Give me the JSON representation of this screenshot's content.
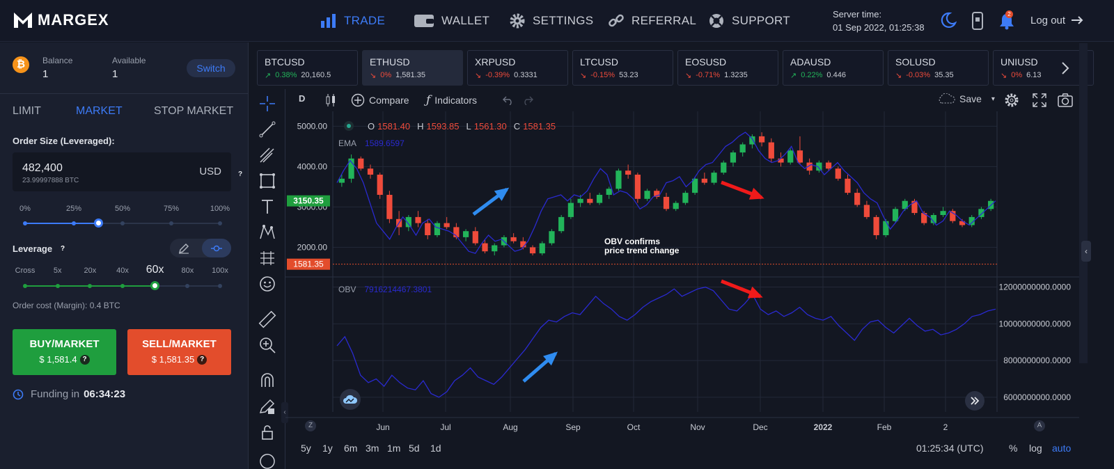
{
  "header": {
    "brand": "MARGEX",
    "nav": [
      {
        "label": "TRADE",
        "active": true
      },
      {
        "label": "WALLET",
        "active": false
      },
      {
        "label": "SETTINGS",
        "active": false
      },
      {
        "label": "REFERRAL",
        "active": false
      },
      {
        "label": "SUPPORT",
        "active": false
      }
    ],
    "server_time_label": "Server time:",
    "server_time_value": "01 Sep 2022, 01:25:38",
    "notification_count": "2",
    "logout_label": "Log out"
  },
  "account": {
    "balance_label": "Balance",
    "balance_value": "1",
    "available_label": "Available",
    "available_value": "1",
    "switch_label": "Switch"
  },
  "order": {
    "tabs": [
      "LIMIT",
      "MARKET",
      "STOP MARKET"
    ],
    "active_tab": "MARKET",
    "size_label": "Order Size (Leveraged):",
    "size_value": "482,400",
    "size_sub": "23.99997888 BTC",
    "size_unit": "USD",
    "percent_ticks": [
      "0%",
      "25%",
      "50%",
      "75%",
      "100%"
    ],
    "percent_value": 0.375,
    "leverage_label": "Leverage",
    "leverage_ticks": [
      "Cross",
      "5x",
      "20x",
      "40x",
      "60x",
      "80x",
      "100x"
    ],
    "leverage_selected": "60x",
    "order_cost": "Order cost (Margin): 0.4 BTC",
    "buy_label": "BUY/MARKET",
    "buy_price": "$ 1,581.4",
    "sell_label": "SELL/MARKET",
    "sell_price": "$ 1,581.35",
    "funding_label": "Funding in",
    "funding_time": "06:34:23"
  },
  "tickers": [
    {
      "symbol": "BTCUSD",
      "change": "0.38%",
      "price": "20,160.5",
      "dir": "up"
    },
    {
      "symbol": "ETHUSD",
      "change": "0%",
      "price": "1,581.35",
      "dir": "flat"
    },
    {
      "symbol": "XRPUSD",
      "change": "-0.39%",
      "price": "0.3331",
      "dir": "down"
    },
    {
      "symbol": "LTCUSD",
      "change": "-0.15%",
      "price": "53.23",
      "dir": "down"
    },
    {
      "symbol": "EOSUSD",
      "change": "-0.71%",
      "price": "1.3235",
      "dir": "down"
    },
    {
      "symbol": "ADAUSD",
      "change": "0.22%",
      "price": "0.446",
      "dir": "up"
    },
    {
      "symbol": "SOLUSD",
      "change": "-0.03%",
      "price": "35.35",
      "dir": "down"
    },
    {
      "symbol": "UNIUSD",
      "change": "0%",
      "price": "6.13",
      "dir": "flat"
    }
  ],
  "chart_toolbar": {
    "interval": "D",
    "compare_label": "Compare",
    "indicators_label": "Indicators",
    "save_label": "Save"
  },
  "chart_data": {
    "type": "candlestick",
    "ohlc_labels": {
      "o": "O",
      "h": "H",
      "l": "L",
      "c": "C"
    },
    "ohlc": {
      "o": "1581.40",
      "h": "1593.85",
      "l": "1561.30",
      "c": "1581.35"
    },
    "ema_label": "EMA",
    "ema_value": "1589.6597",
    "obv_label": "OBV",
    "obv_value": "7916214467.3801",
    "price_axis_ticks": [
      "5000.00",
      "4000.00",
      "3000.00",
      "2000.00"
    ],
    "price_axis_values": [
      5000,
      4000,
      3000,
      2000
    ],
    "price_ylim": [
      1300,
      5300
    ],
    "marker_high": "3150.35",
    "marker_high_value": 3150.35,
    "marker_last": "1581.35",
    "marker_last_value": 1581.35,
    "obv_axis_ticks": [
      "12000000000.0000",
      "10000000000.0000",
      "8000000000.0000",
      "6000000000.0000"
    ],
    "obv_axis_values": [
      12000000000,
      10000000000,
      8000000000,
      6000000000
    ],
    "obv_ylim": [
      5200000000,
      12400000000
    ],
    "x_ticks": [
      "Jun",
      "Jul",
      "Aug",
      "Sep",
      "Oct",
      "Nov",
      "Dec",
      "2022",
      "Feb",
      "2"
    ],
    "annotation": [
      "OBV confirms",
      "price trend change"
    ],
    "price_series": [
      3600,
      3900,
      4150,
      3950,
      3600,
      3100,
      2600,
      2400,
      2200,
      2500,
      2750,
      2550,
      2300,
      2600,
      2700,
      2500,
      2450,
      2400,
      2300,
      2100,
      1900,
      1850,
      2100,
      2300,
      2150,
      2200,
      2050,
      1900,
      1950,
      2150,
      2500,
      2900,
      3200,
      3250,
      3300,
      3150,
      3300,
      3250,
      3400,
      3700,
      3950,
      3800,
      3300,
      3400,
      3350,
      3200,
      2950,
      3050,
      3250,
      3300,
      3600,
      3650,
      3750,
      3500,
      3650,
      3900,
      4050,
      4100,
      4300,
      4500,
      4600,
      4750,
      4850,
      4700,
      4400,
      4200,
      4100,
      4150,
      4300,
      4500,
      4100,
      3950,
      4050,
      4000,
      3800,
      3950,
      4100,
      3900,
      3750,
      3600,
      3350,
      3200,
      3100,
      2750,
      2450,
      2650,
      2900,
      3050,
      3150,
      2850,
      2750,
      2550,
      2650,
      2900,
      2800,
      2650,
      2550,
      2700,
      2850,
      3000,
      3150
    ],
    "obv_series": [
      8800000000,
      9300000000,
      8400000000,
      7200000000,
      6800000000,
      7000000000,
      6600000000,
      7200000000,
      6800000000,
      6500000000,
      6400000000,
      6900000000,
      6200000000,
      6000000000,
      6300000000,
      6900000000,
      7200000000,
      7600000000,
      7100000000,
      6900000000,
      6700000000,
      7100000000,
      7600000000,
      8100000000,
      8600000000,
      9200000000,
      9800000000,
      10200000000,
      10100000000,
      10400000000,
      10600000000,
      10500000000,
      11000000000,
      11500000000,
      11100000000,
      10800000000,
      10400000000,
      10200000000,
      10500000000,
      10900000000,
      11200000000,
      11400000000,
      11600000000,
      11900000000,
      11500000000,
      11700000000,
      11900000000,
      12000000000,
      11800000000,
      11300000000,
      10800000000,
      10700000000,
      11100000000,
      11600000000,
      10800000000,
      10500000000,
      10700000000,
      10400000000,
      10600000000,
      10900000000,
      10500000000,
      10300000000,
      10200000000,
      10400000000,
      9900000000,
      9500000000,
      9100000000,
      9700000000,
      10100000000,
      10200000000,
      9800000000,
      9500000000,
      9900000000,
      10300000000,
      9900000000,
      9600000000,
      9700000000,
      9400000000,
      9500000000,
      9700000000,
      10000000000,
      10400000000,
      10500000000,
      10700000000,
      10800000000
    ],
    "candles": [
      [
        3600,
        3800,
        3500,
        3700
      ],
      [
        3700,
        4300,
        3600,
        4200
      ],
      [
        4200,
        4250,
        3900,
        3950
      ],
      [
        3950,
        4050,
        3700,
        3800
      ],
      [
        3800,
        3850,
        3200,
        3300
      ],
      [
        3300,
        3400,
        2600,
        2700
      ],
      [
        2700,
        2900,
        2300,
        2500
      ],
      [
        2500,
        2800,
        2400,
        2750
      ],
      [
        2750,
        2900,
        2500,
        2600
      ],
      [
        2600,
        2700,
        2200,
        2300
      ],
      [
        2300,
        2650,
        2250,
        2600
      ],
      [
        2600,
        2750,
        2450,
        2500
      ],
      [
        2500,
        2600,
        2200,
        2250
      ],
      [
        2250,
        2450,
        2150,
        2400
      ],
      [
        2400,
        2500,
        2050,
        2100
      ],
      [
        2100,
        2200,
        1850,
        1900
      ],
      [
        1900,
        2100,
        1800,
        2050
      ],
      [
        2050,
        2300,
        2000,
        2250
      ],
      [
        2250,
        2350,
        2100,
        2150
      ],
      [
        2150,
        2250,
        1950,
        2000
      ],
      [
        2000,
        2050,
        1800,
        1850
      ],
      [
        1850,
        2150,
        1800,
        2100
      ],
      [
        2100,
        2450,
        2050,
        2400
      ],
      [
        2400,
        2800,
        2350,
        2750
      ],
      [
        2750,
        3200,
        2700,
        3100
      ],
      [
        3100,
        3300,
        3000,
        3200
      ],
      [
        3200,
        3350,
        3050,
        3100
      ],
      [
        3100,
        3350,
        3050,
        3300
      ],
      [
        3300,
        3500,
        3200,
        3450
      ],
      [
        3450,
        3950,
        3400,
        3900
      ],
      [
        3900,
        4050,
        3700,
        3800
      ],
      [
        3800,
        3850,
        3100,
        3200
      ],
      [
        3200,
        3450,
        3150,
        3400
      ],
      [
        3400,
        3450,
        3200,
        3250
      ],
      [
        3250,
        3350,
        2900,
        2950
      ],
      [
        2950,
        3150,
        2900,
        3100
      ],
      [
        3100,
        3400,
        3050,
        3350
      ],
      [
        3350,
        3750,
        3300,
        3700
      ],
      [
        3700,
        3850,
        3550,
        3600
      ],
      [
        3600,
        3900,
        3550,
        3850
      ],
      [
        3850,
        4150,
        3800,
        4100
      ],
      [
        4100,
        4400,
        4000,
        4350
      ],
      [
        4350,
        4600,
        4250,
        4550
      ],
      [
        4550,
        4800,
        4450,
        4750
      ],
      [
        4750,
        4850,
        4500,
        4600
      ],
      [
        4600,
        4700,
        4100,
        4200
      ],
      [
        4200,
        4350,
        4000,
        4100
      ],
      [
        4100,
        4450,
        4050,
        4400
      ],
      [
        4400,
        4750,
        4050,
        4100
      ],
      [
        4100,
        4200,
        3800,
        3900
      ],
      [
        3900,
        4150,
        3850,
        4100
      ],
      [
        4100,
        4150,
        3900,
        3950
      ],
      [
        3950,
        4000,
        3650,
        3700
      ],
      [
        3700,
        3800,
        3300,
        3350
      ],
      [
        3350,
        3450,
        3000,
        3050
      ],
      [
        3050,
        3150,
        2700,
        2750
      ],
      [
        2750,
        2800,
        2200,
        2300
      ],
      [
        2300,
        2700,
        2250,
        2650
      ],
      [
        2650,
        3000,
        2600,
        2950
      ],
      [
        2950,
        3200,
        2900,
        3150
      ],
      [
        3150,
        3200,
        2800,
        2850
      ],
      [
        2850,
        2900,
        2550,
        2600
      ],
      [
        2600,
        2850,
        2550,
        2800
      ],
      [
        2800,
        3000,
        2750,
        2900
      ],
      [
        2900,
        2950,
        2600,
        2650
      ],
      [
        2650,
        2700,
        2500,
        2550
      ],
      [
        2550,
        2800,
        2500,
        2750
      ],
      [
        2750,
        3000,
        2700,
        2950
      ],
      [
        2950,
        3200,
        2900,
        3150
      ]
    ]
  },
  "bottom": {
    "ranges": [
      "5y",
      "1y",
      "6m",
      "3m",
      "1m",
      "5d",
      "1d"
    ],
    "time": "01:25:34 (UTC)",
    "pct": "%",
    "log": "log",
    "auto": "auto",
    "z": "Z",
    "a": "A"
  },
  "colors": {
    "accent": "#3d7bf7",
    "up": "#22b45a",
    "down": "#ef4b3b",
    "buy": "#1f9e3e",
    "sell": "#e34d2c"
  }
}
